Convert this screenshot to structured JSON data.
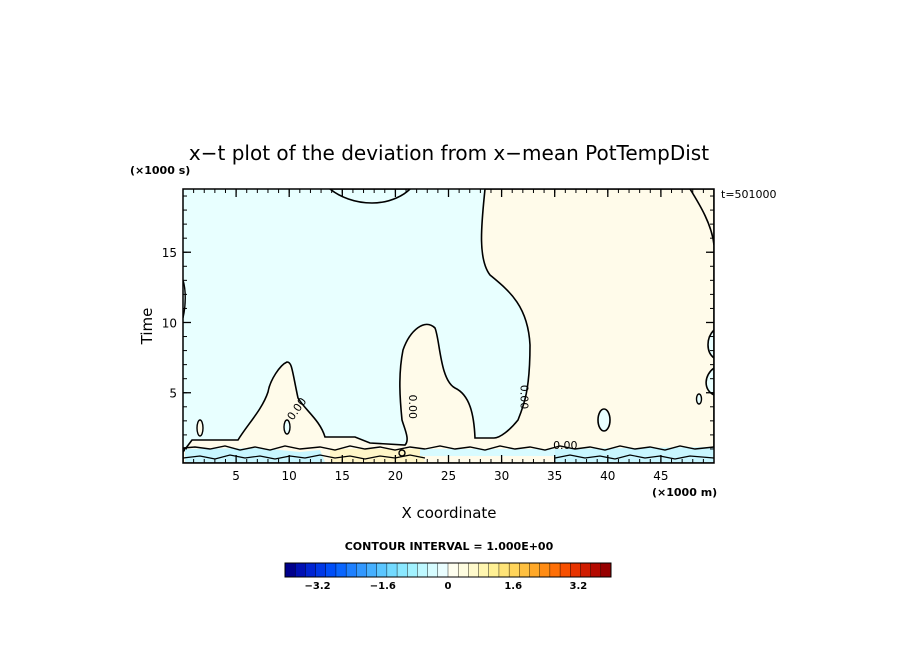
{
  "chart_data": {
    "type": "heatmap",
    "title": "x−t plot of the deviation from x−mean PotTempDist",
    "xlabel": "X coordinate",
    "ylabel": "Time",
    "x_unit": "(×1000 m)",
    "y_unit": "(×1000 s)",
    "time_stamp": "t=501000",
    "xlim": [
      0,
      50
    ],
    "ylim": [
      0,
      19.5
    ],
    "x_ticks": [
      5,
      10,
      15,
      20,
      25,
      30,
      35,
      40,
      45
    ],
    "y_ticks": [
      5,
      10,
      15
    ],
    "contour_label": "0.00",
    "contour_labels": [
      {
        "x": 11.0,
        "y": 3.7,
        "text": "0.00",
        "rotate": -55
      },
      {
        "x": 21.3,
        "y": 4.0,
        "text": "0.00",
        "rotate": 90
      },
      {
        "x": 31.8,
        "y": 4.7,
        "text": "0.00",
        "rotate": 90
      },
      {
        "x": 36.0,
        "y": 1.0,
        "text": "0.00",
        "rotate": 0
      }
    ],
    "regions": [
      {
        "name": "positive",
        "value": 0.2,
        "color": "#fffbea"
      },
      {
        "name": "negative",
        "value": -0.2,
        "color": "#e8ffff"
      }
    ],
    "colorbar": {
      "caption": "CONTOUR INTERVAL = 1.000E+00",
      "tick_labels": [
        "−3.2",
        "−1.6",
        "0",
        "1.6",
        "3.2"
      ],
      "tick_values": [
        -3.2,
        -1.6,
        0,
        1.6,
        3.2
      ],
      "range": [
        -4.0,
        4.0
      ],
      "colors": [
        "#00008c",
        "#0010b4",
        "#0024d2",
        "#0038e6",
        "#004ef8",
        "#0a66ff",
        "#1e80ff",
        "#3298ff",
        "#46b0ff",
        "#5ac6ff",
        "#72daff",
        "#8ae8ff",
        "#a2f2ff",
        "#bef8ff",
        "#d6fcff",
        "#eafeff",
        "#fffff0",
        "#fffde0",
        "#fffacc",
        "#fff6b0",
        "#fff094",
        "#ffe478",
        "#ffd45a",
        "#ffc040",
        "#ffa828",
        "#ff8c14",
        "#ff7008",
        "#f85000",
        "#e83400",
        "#d01c00",
        "#b40a00",
        "#960000"
      ]
    }
  }
}
